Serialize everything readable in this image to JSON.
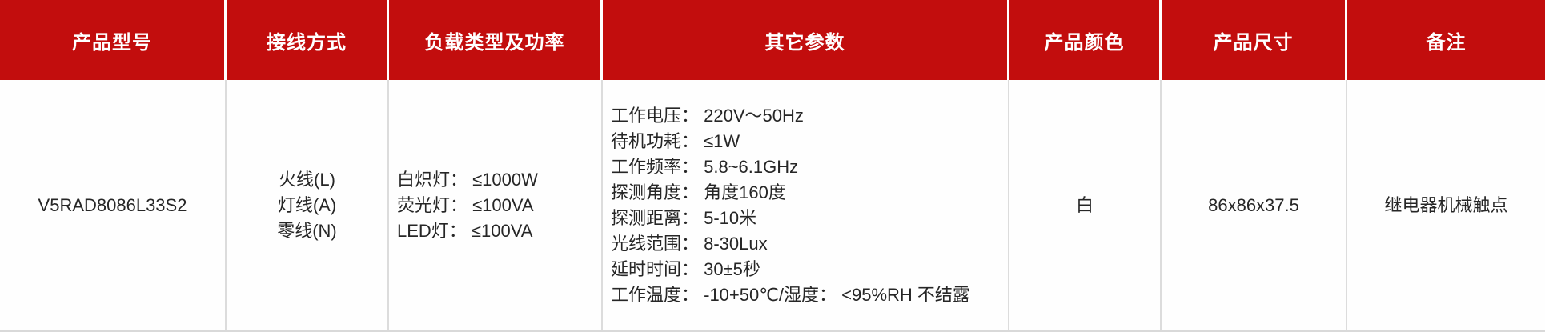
{
  "table": {
    "columns": [
      {
        "label": "产品型号"
      },
      {
        "label": "接线方式"
      },
      {
        "label": "负载类型及功率"
      },
      {
        "label": "其它参数"
      },
      {
        "label": "产品颜色"
      },
      {
        "label": "产品尺寸"
      },
      {
        "label": "备注"
      }
    ],
    "row": {
      "model": "V5RAD8086L33S2",
      "wiring_lines": [
        "火线(L)",
        "灯线(A)",
        "零线(N)"
      ],
      "load_lines": [
        "白炽灯： ≤1000W",
        "荧光灯： ≤100VA",
        "LED灯： ≤100VA"
      ],
      "param_lines": [
        "工作电压： 220V～50Hz",
        "待机功耗： ≤1W",
        "工作频率： 5.8~6.1GHz",
        "探测角度： 角度160度",
        "探测距离： 5-10米",
        "光线范围： 8-30Lux",
        "延时时间： 30±5秒",
        "工作温度： -10+50℃/湿度： <95%RH 不结露"
      ],
      "color": "白",
      "size": "86x86x37.5",
      "remark": "继电器机械触点"
    },
    "colors": {
      "header_bg": "#C20D0D",
      "header_text": "#FFFFFF",
      "body_text": "#262626",
      "border": "#DCDCDC",
      "body_bg": "#FFFFFF"
    }
  }
}
